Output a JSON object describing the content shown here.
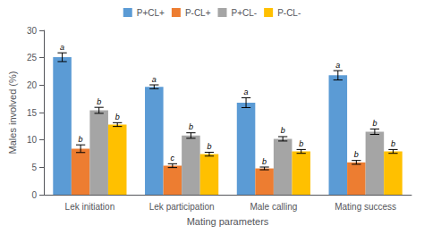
{
  "chart_data": {
    "type": "bar",
    "categories": [
      "Lek initiation",
      "Lek participation",
      "Male calling",
      "Mating success"
    ],
    "series": [
      {
        "name": "P+CL+",
        "color": "#5b9bd5",
        "values": [
          25.1,
          19.7,
          16.8,
          21.8
        ],
        "errors": [
          0.8,
          0.35,
          0.9,
          0.85
        ],
        "significance": [
          "a",
          "a",
          "a",
          "a"
        ]
      },
      {
        "name": "P-CL+",
        "color": "#ed7d31",
        "values": [
          8.4,
          5.3,
          4.8,
          5.9
        ],
        "errors": [
          0.7,
          0.35,
          0.25,
          0.35
        ],
        "significance": [
          "b",
          "c",
          "b",
          "b"
        ]
      },
      {
        "name": "P+CL-",
        "color": "#a5a5a5",
        "values": [
          15.4,
          10.8,
          10.2,
          11.5
        ],
        "errors": [
          0.55,
          0.5,
          0.4,
          0.5
        ],
        "significance": [
          "b",
          "b",
          "b",
          "b"
        ]
      },
      {
        "name": "P-CL-",
        "color": "#ffc000",
        "values": [
          12.8,
          7.4,
          7.9,
          7.9
        ],
        "errors": [
          0.35,
          0.35,
          0.35,
          0.35
        ],
        "significance": [
          "b",
          "b",
          "b",
          "b"
        ]
      }
    ],
    "xlabel": "Mating parameters",
    "ylabel": "Males involved (%)",
    "ylim": [
      0,
      30
    ],
    "yticks": [
      0,
      5,
      10,
      15,
      20,
      25,
      30
    ],
    "grid": false,
    "legend": "top"
  }
}
